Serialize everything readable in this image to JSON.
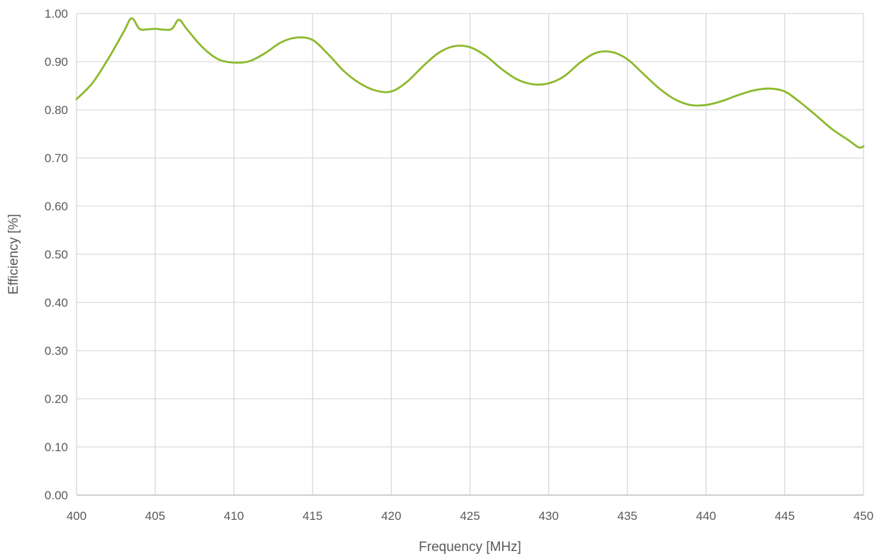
{
  "chart_data": {
    "type": "line",
    "title": "",
    "xlabel": "Frequency [MHz]",
    "ylabel": "Efficiency [%]",
    "xlim": [
      400,
      450
    ],
    "ylim": [
      0,
      1
    ],
    "x_ticks": [
      "400",
      "405",
      "410",
      "415",
      "420",
      "425",
      "430",
      "435",
      "440",
      "445",
      "450"
    ],
    "y_ticks": [
      "0.00",
      "0.10",
      "0.20",
      "0.30",
      "0.40",
      "0.50",
      "0.60",
      "0.70",
      "0.80",
      "0.90",
      "1.00"
    ],
    "grid": true,
    "legend": "none",
    "series": [
      {
        "color": "#8DB92E",
        "x": [
          400,
          401,
          402,
          403,
          403.5,
          404,
          404.5,
          405,
          406,
          406.5,
          407,
          408,
          409,
          410,
          411,
          412,
          413,
          414,
          415,
          416,
          417,
          418,
          419,
          420,
          421,
          422,
          423,
          424,
          425,
          426,
          427,
          428,
          429,
          430,
          431,
          432,
          433,
          434,
          435,
          436,
          437,
          438,
          439,
          440,
          441,
          442,
          443,
          444,
          445,
          446,
          447,
          448,
          449,
          449.7,
          450
        ],
        "y": [
          0.822,
          0.855,
          0.905,
          0.962,
          0.99,
          0.968,
          0.967,
          0.968,
          0.967,
          0.987,
          0.968,
          0.93,
          0.905,
          0.898,
          0.901,
          0.918,
          0.94,
          0.95,
          0.945,
          0.915,
          0.88,
          0.855,
          0.84,
          0.838,
          0.858,
          0.89,
          0.918,
          0.932,
          0.93,
          0.912,
          0.885,
          0.863,
          0.853,
          0.855,
          0.87,
          0.898,
          0.918,
          0.92,
          0.905,
          0.875,
          0.845,
          0.822,
          0.81,
          0.81,
          0.818,
          0.83,
          0.84,
          0.844,
          0.838,
          0.815,
          0.788,
          0.76,
          0.738,
          0.722,
          0.724
        ]
      }
    ]
  }
}
